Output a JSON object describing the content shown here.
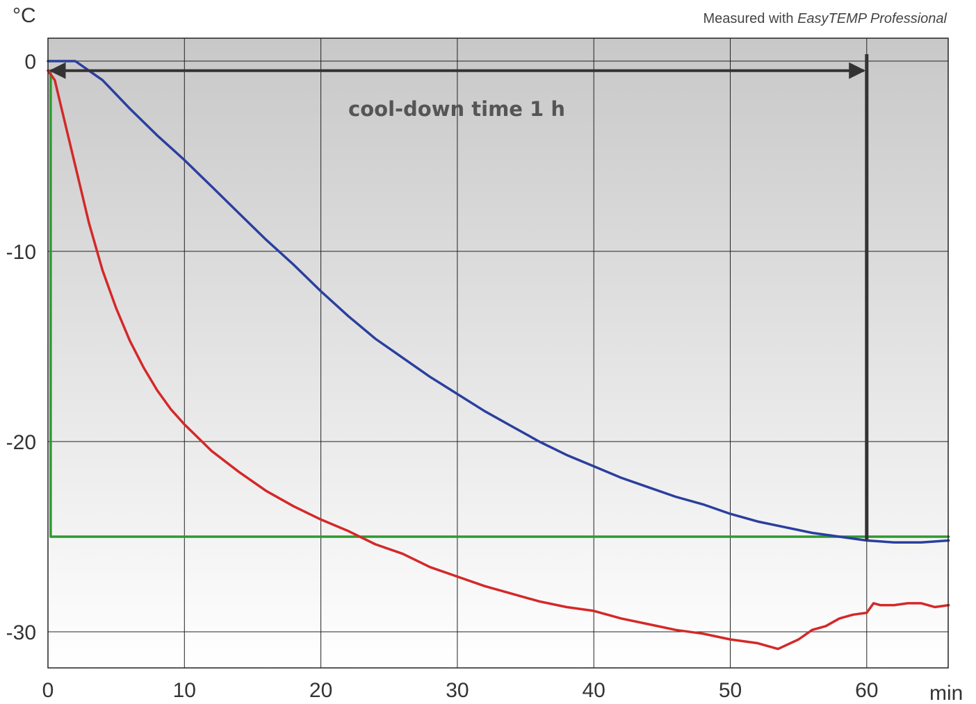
{
  "chart_data": {
    "type": "line",
    "title": "",
    "subtitle": "",
    "xlabel": "min",
    "ylabel": "°C",
    "xlim": [
      0,
      66
    ],
    "ylim": [
      -32,
      1
    ],
    "grid": true,
    "legend": "none",
    "background": "vertical gradient, grey at top to white at bottom",
    "x_ticks": [
      0,
      10,
      20,
      30,
      40,
      50,
      60
    ],
    "y_ticks": [
      0,
      -10,
      -20,
      -30
    ],
    "credit": {
      "prefix": "Measured with ",
      "product": "EasyTEMP Professional"
    },
    "annotation": {
      "text": "cool-down time 1 h",
      "arrow_from_x": 0,
      "arrow_to_x": 60,
      "arrow_y": -0.5,
      "marker_line_x": 60
    },
    "series": [
      {
        "color": "#2a3f9e",
        "points": [
          [
            0,
            0
          ],
          [
            2,
            0
          ],
          [
            4,
            -1
          ],
          [
            6,
            -2.5
          ],
          [
            8,
            -3.9
          ],
          [
            10,
            -5.2
          ],
          [
            12,
            -6.6
          ],
          [
            14,
            -8
          ],
          [
            16,
            -9.4
          ],
          [
            18,
            -10.7
          ],
          [
            20,
            -12.1
          ],
          [
            22,
            -13.4
          ],
          [
            24,
            -14.6
          ],
          [
            26,
            -15.6
          ],
          [
            28,
            -16.6
          ],
          [
            30,
            -17.5
          ],
          [
            32,
            -18.4
          ],
          [
            34,
            -19.2
          ],
          [
            36,
            -20
          ],
          [
            38,
            -20.7
          ],
          [
            40,
            -21.3
          ],
          [
            42,
            -21.9
          ],
          [
            44,
            -22.4
          ],
          [
            46,
            -22.9
          ],
          [
            48,
            -23.3
          ],
          [
            50,
            -23.8
          ],
          [
            52,
            -24.2
          ],
          [
            54,
            -24.5
          ],
          [
            56,
            -24.8
          ],
          [
            58,
            -25
          ],
          [
            60,
            -25.2
          ],
          [
            62,
            -25.3
          ],
          [
            64,
            -25.3
          ],
          [
            66,
            -25.2
          ]
        ]
      },
      {
        "color": "#d42828",
        "points": [
          [
            0,
            -0.5
          ],
          [
            0.5,
            -1
          ],
          [
            1,
            -2.5
          ],
          [
            2,
            -5.5
          ],
          [
            3,
            -8.5
          ],
          [
            4,
            -11
          ],
          [
            5,
            -13
          ],
          [
            6,
            -14.7
          ],
          [
            7,
            -16.1
          ],
          [
            8,
            -17.3
          ],
          [
            9,
            -18.3
          ],
          [
            10,
            -19.1
          ],
          [
            12,
            -20.5
          ],
          [
            14,
            -21.6
          ],
          [
            16,
            -22.6
          ],
          [
            18,
            -23.4
          ],
          [
            20,
            -24.1
          ],
          [
            22,
            -24.7
          ],
          [
            24,
            -25.4
          ],
          [
            26,
            -25.9
          ],
          [
            28,
            -26.6
          ],
          [
            30,
            -27.1
          ],
          [
            32,
            -27.6
          ],
          [
            34,
            -28
          ],
          [
            36,
            -28.4
          ],
          [
            38,
            -28.7
          ],
          [
            40,
            -28.9
          ],
          [
            42,
            -29.3
          ],
          [
            44,
            -29.6
          ],
          [
            46,
            -29.9
          ],
          [
            48,
            -30.1
          ],
          [
            50,
            -30.4
          ],
          [
            52,
            -30.6
          ],
          [
            53.5,
            -30.9
          ],
          [
            55,
            -30.4
          ],
          [
            56,
            -29.9
          ],
          [
            57,
            -29.7
          ],
          [
            58,
            -29.3
          ],
          [
            59,
            -29.1
          ],
          [
            60,
            -29
          ],
          [
            60.5,
            -28.5
          ],
          [
            61,
            -28.6
          ],
          [
            62,
            -28.6
          ],
          [
            63,
            -28.5
          ],
          [
            64,
            -28.5
          ],
          [
            65,
            -28.7
          ],
          [
            66,
            -28.6
          ]
        ]
      },
      {
        "color": "#2f9a2f",
        "points": [
          [
            0,
            -0.5
          ],
          [
            0.2,
            -0.5
          ],
          [
            0.2,
            -25
          ],
          [
            66,
            -25
          ]
        ]
      }
    ]
  }
}
